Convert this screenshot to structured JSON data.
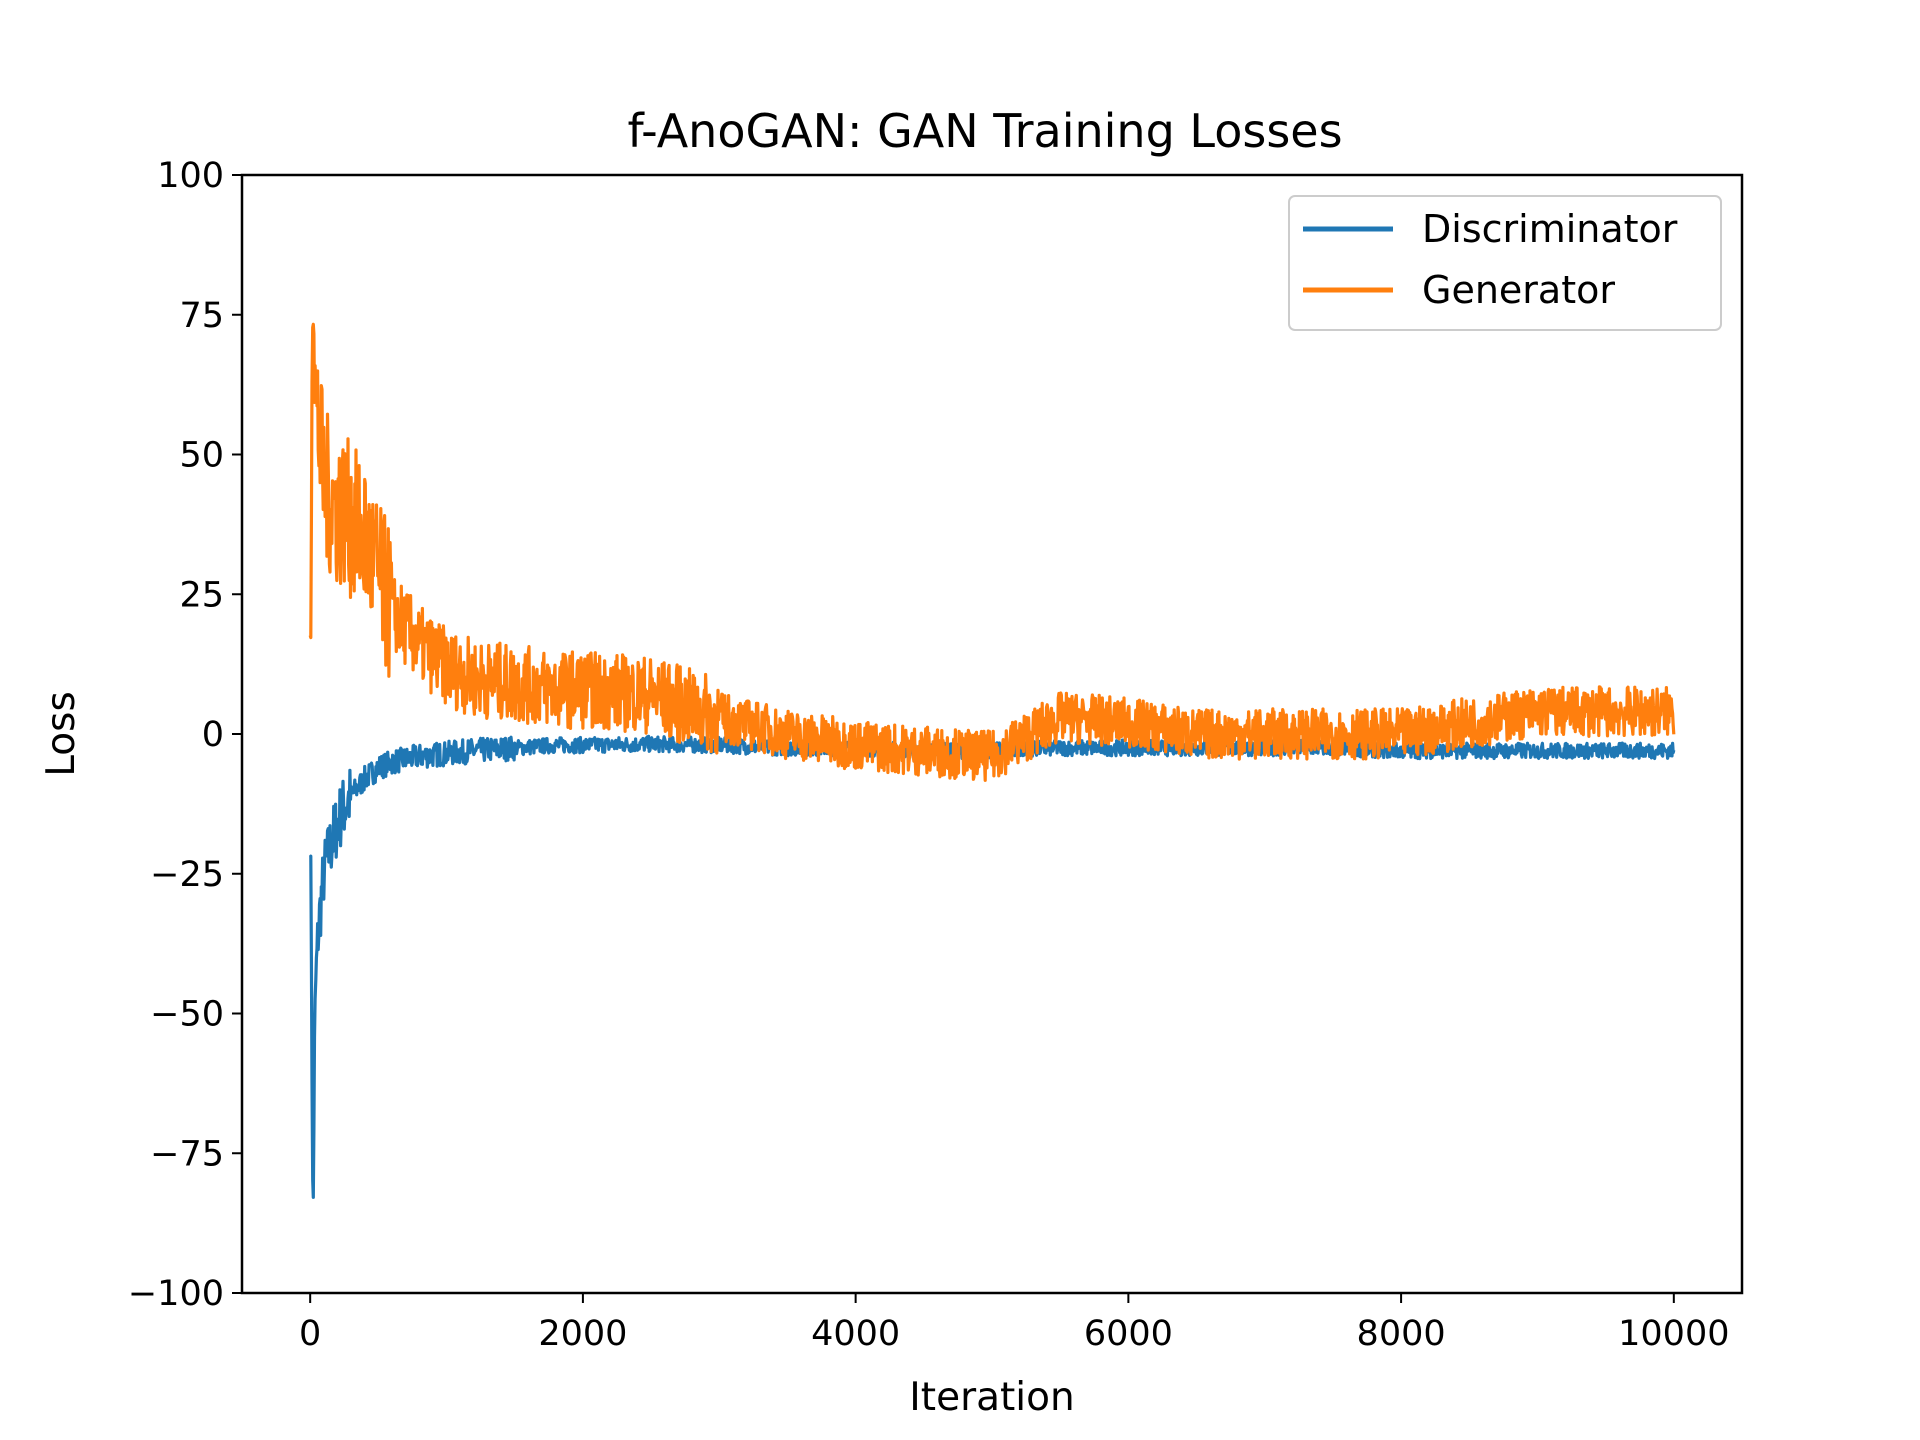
{
  "chart_data": {
    "type": "line",
    "title": "f-AnoGAN: GAN Training Losses",
    "xlabel": "Iteration",
    "ylabel": "Loss",
    "xlim": [
      -500,
      10500
    ],
    "ylim": [
      -100,
      100
    ],
    "xticks": [
      0,
      2000,
      4000,
      6000,
      8000,
      10000
    ],
    "xtick_labels": [
      "0",
      "2000",
      "4000",
      "6000",
      "8000",
      "10000"
    ],
    "yticks": [
      100,
      75,
      50,
      25,
      0,
      -25,
      -50,
      -75,
      -100
    ],
    "ytick_labels": [
      "100",
      "75",
      "50",
      "25",
      "0",
      "−25",
      "−50",
      "−75",
      "−100"
    ],
    "grid": false,
    "legend_position": "top-right",
    "series": [
      {
        "name": "Discriminator",
        "color": "#1f77b4",
        "x": [
          0,
          10,
          20,
          30,
          40,
          60,
          80,
          100,
          150,
          200,
          250,
          300,
          400,
          500,
          600,
          800,
          1000,
          1200,
          1500,
          1800,
          2000,
          2500,
          3000,
          3500,
          4000,
          4500,
          5000,
          5500,
          6000,
          6500,
          7000,
          7500,
          8000,
          8500,
          9000,
          9500,
          10000
        ],
        "values": [
          -16,
          -40,
          -92,
          -60,
          -45,
          -35,
          -30,
          -25,
          -20,
          -16,
          -13,
          -11,
          -8,
          -6,
          -5,
          -4,
          -3.5,
          -3,
          -2.5,
          -2,
          -2,
          -1.8,
          -2,
          -2.5,
          -2.5,
          -3,
          -3,
          -2.5,
          -2.5,
          -2.5,
          -2.5,
          -2.5,
          -3,
          -3,
          -3,
          -3,
          -3
        ]
      },
      {
        "name": "Generator",
        "color": "#ff7f0e",
        "x": [
          0,
          10,
          20,
          30,
          40,
          60,
          80,
          100,
          150,
          200,
          250,
          300,
          400,
          500,
          600,
          800,
          1000,
          1200,
          1500,
          1800,
          2000,
          2500,
          3000,
          3500,
          4000,
          4500,
          5000,
          5500,
          6000,
          6500,
          7000,
          7500,
          8000,
          8500,
          9000,
          9500,
          10000
        ],
        "values": [
          10,
          50,
          92,
          70,
          60,
          55,
          50,
          45,
          42,
          40,
          40,
          38,
          35,
          28,
          22,
          16,
          12,
          10,
          9,
          8,
          8,
          7,
          3,
          0,
          -2,
          -3,
          -4,
          3,
          2,
          0,
          0,
          0,
          0,
          2,
          4,
          4,
          4
        ]
      }
    ]
  }
}
